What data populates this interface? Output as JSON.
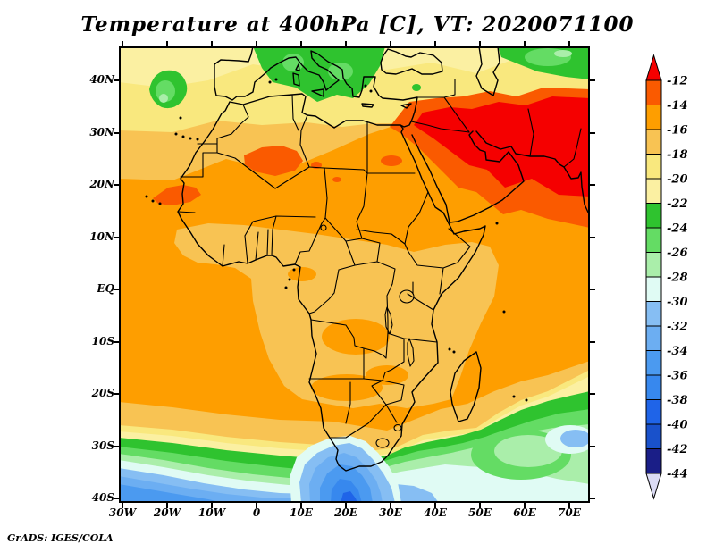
{
  "title": "Temperature at 400hPa [C], VT: 2020071100",
  "credit": "GrADS: IGES/COLA",
  "map": {
    "y_ticks": [
      "40N",
      "30N",
      "20N",
      "10N",
      "EQ",
      "10S",
      "20S",
      "30S",
      "40S"
    ],
    "x_ticks": [
      "30W",
      "20W",
      "10W",
      "0",
      "10E",
      "20E",
      "30E",
      "40E",
      "50E",
      "60E",
      "70E"
    ]
  },
  "colorbar": {
    "labels": [
      "-12",
      "-14",
      "-16",
      "-18",
      "-20",
      "-22",
      "-24",
      "-26",
      "-28",
      "-30",
      "-32",
      "-34",
      "-36",
      "-38",
      "-40",
      "-42",
      "-44"
    ],
    "top_arrow_color": "#f50000",
    "bottom_arrow_color": "#dbdbf4",
    "segment_colors": [
      "#fa5a00",
      "#fe9e00",
      "#f8c353",
      "#f9e87e",
      "#fbf0a2",
      "#2fc32f",
      "#64dc64",
      "#aaeeaa",
      "#e0fbf4",
      "#86bef3",
      "#6caef2",
      "#4b9af0",
      "#3788ee",
      "#1f64e8",
      "#1951cb",
      "#1a1e87"
    ]
  },
  "chart_data": {
    "type": "heatmap",
    "title": "Temperature at 400hPa [C], VT: 2020071100",
    "variable": "Temperature",
    "pressure_level": "400hPa",
    "units": "C",
    "valid_time": "2020071100",
    "renderer": "GrADS: IGES/COLA",
    "x_axis": {
      "ticks": [
        "30W",
        "20W",
        "10W",
        "0",
        "10E",
        "20E",
        "30E",
        "40E",
        "50E",
        "60E",
        "70E"
      ],
      "approx_range_deg_lon": [
        -31,
        75
      ]
    },
    "y_axis": {
      "ticks": [
        "40N",
        "30N",
        "20N",
        "10N",
        "EQ",
        "10S",
        "20S",
        "30S",
        "40S"
      ],
      "approx_range_deg_lat": [
        -41,
        46
      ]
    },
    "contour_interval_C": 2,
    "contour_levels_C": [
      -44,
      -42,
      -40,
      -38,
      -36,
      -34,
      -32,
      -30,
      -28,
      -26,
      -24,
      -22,
      -20,
      -18,
      -16,
      -14,
      -12
    ],
    "palette_cold_to_warm": [
      "#dbdbf4",
      "#1a1e87",
      "#1951cb",
      "#1f64e8",
      "#3788ee",
      "#4b9af0",
      "#6caef2",
      "#86bef3",
      "#e0fbf4",
      "#aaeeaa",
      "#64dc64",
      "#2fc32f",
      "#fbf0a2",
      "#f9e87e",
      "#f8c353",
      "#fe9e00",
      "#fa5a00",
      "#f50000"
    ],
    "legend_position": "right",
    "grid": false,
    "features": [
      {
        "region": "Egypt / Arabian Peninsula / Iran / NW India",
        "approx_value_C": "warmer than -12 (warmest core)"
      },
      {
        "region": "Sahara, Sahel and tropical Africa",
        "approx_value_C": "-14 to -18"
      },
      {
        "region": "NE Atlantic blob near 20W 38N, Europe / Italy, Central Asia top-right",
        "approx_value_C": "-22 to -28"
      },
      {
        "region": "South Atlantic / Southern Ocean band 28S-40S",
        "approx_value_C": "-22 to -36"
      },
      {
        "region": "Cold trough over Western Cape of South Africa (~20E)",
        "approx_value_C": "-34 to -40"
      },
      {
        "region": "SE Indian Ocean blob (~70E, 28S)",
        "approx_value_C": "-30 to -32"
      }
    ]
  }
}
